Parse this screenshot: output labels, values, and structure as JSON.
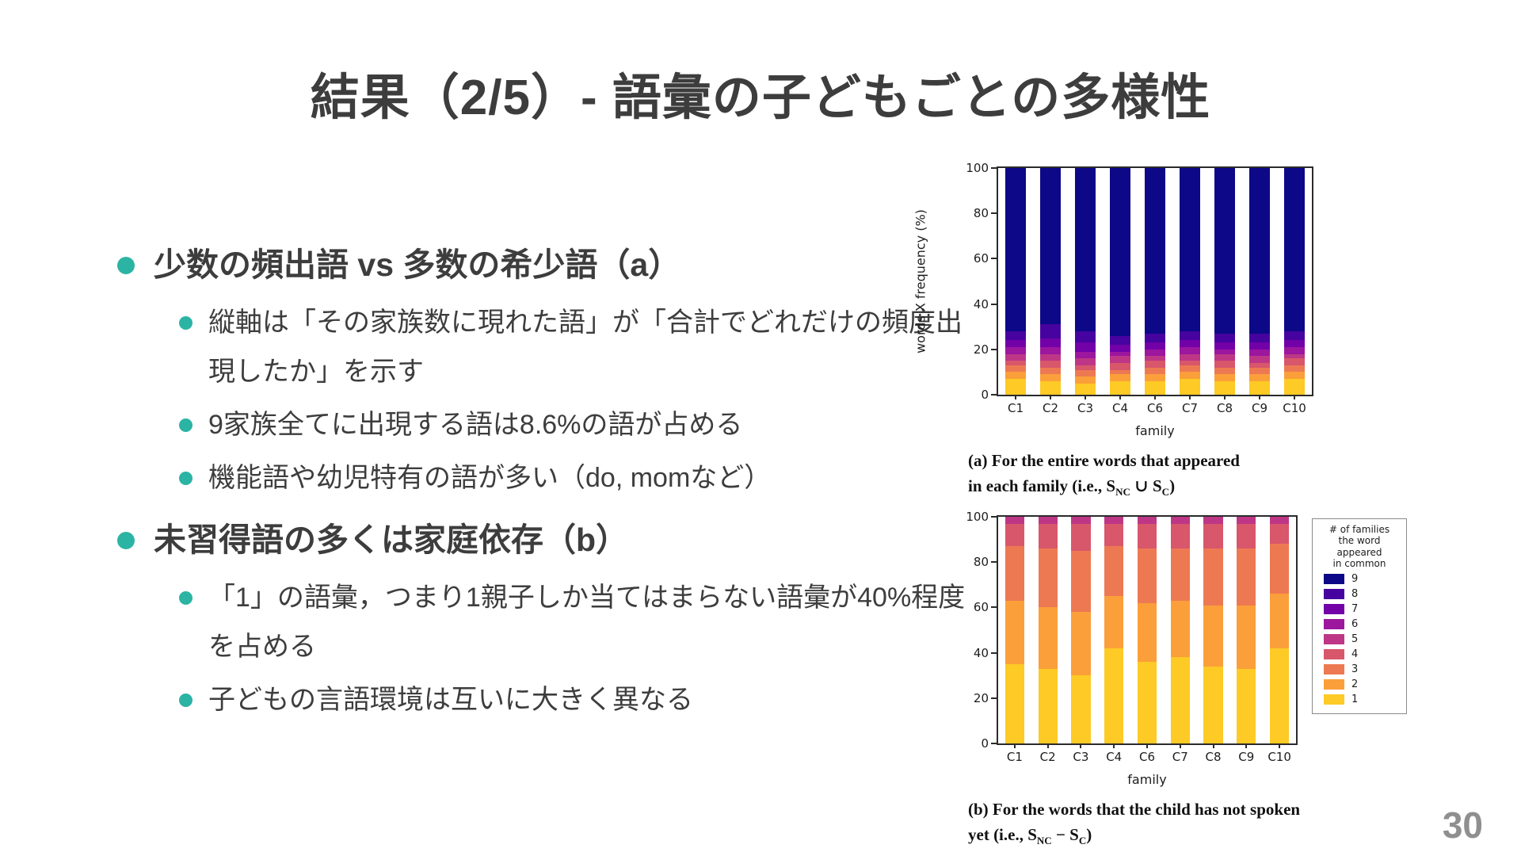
{
  "slide": {
    "title": "結果（2/5）- 語彙の子どもごとの多様性",
    "page_number": "30",
    "accent_color": "#2bb4a4",
    "text_color": "#3d3d3d"
  },
  "bullets": [
    {
      "level": 1,
      "text": "少数の頻出語 vs 多数の希少語（a）"
    },
    {
      "level": 2,
      "text": "縦軸は「その家族数に現れた語」が「合計でどれだけの頻度出現したか」を示す"
    },
    {
      "level": 2,
      "text": "9家族全てに出現する語は8.6%の語が占める"
    },
    {
      "level": 2,
      "text": "機能語や幼児特有の語が多い（do, momなど）"
    },
    {
      "level": 1,
      "text": "未習得語の多くは家庭依存（b）"
    },
    {
      "level": 2,
      "text": "「1」の語彙，つまり1親子しか当てはまらない語彙が40%程度を占める"
    },
    {
      "level": 2,
      "text": "子どもの言語環境は互いに大きく異なる"
    }
  ],
  "chart_data": [
    {
      "id": "a",
      "type": "bar",
      "stacked": true,
      "title": "",
      "ylabel": "words X frequency (%)",
      "xlabel": "family",
      "ylim": [
        0,
        100
      ],
      "yticks": [
        0,
        20,
        40,
        60,
        80,
        100
      ],
      "categories": [
        "C1",
        "C2",
        "C3",
        "C4",
        "C6",
        "C7",
        "C8",
        "C9",
        "C10"
      ],
      "series": [
        {
          "name": "1",
          "color": "#fdca26",
          "values": [
            7,
            6,
            5,
            6,
            6,
            7,
            6,
            6,
            7
          ]
        },
        {
          "name": "2",
          "color": "#fb9f3a",
          "values": [
            3,
            3,
            3,
            3,
            3,
            3,
            3,
            3,
            3
          ]
        },
        {
          "name": "3",
          "color": "#ed7953",
          "values": [
            3,
            3,
            3,
            2,
            3,
            3,
            3,
            3,
            3
          ]
        },
        {
          "name": "4",
          "color": "#d8576b",
          "values": [
            2,
            3,
            2,
            3,
            3,
            2,
            3,
            2,
            3
          ]
        },
        {
          "name": "5",
          "color": "#bd3786",
          "values": [
            3,
            3,
            3,
            3,
            2,
            3,
            3,
            3,
            2
          ]
        },
        {
          "name": "6",
          "color": "#9c179e",
          "values": [
            3,
            3,
            3,
            2,
            3,
            3,
            2,
            3,
            3
          ]
        },
        {
          "name": "7",
          "color": "#7201a8",
          "values": [
            3,
            4,
            4,
            3,
            3,
            3,
            3,
            3,
            3
          ]
        },
        {
          "name": "8",
          "color": "#46039f",
          "values": [
            4,
            6,
            5,
            4,
            4,
            4,
            4,
            4,
            4
          ]
        },
        {
          "name": "9",
          "color": "#0d0887",
          "values": [
            72,
            69,
            72,
            74,
            73,
            72,
            73,
            73,
            72
          ]
        }
      ]
    },
    {
      "id": "b",
      "type": "bar",
      "stacked": true,
      "title": "",
      "ylabel": "",
      "xlabel": "family",
      "ylim": [
        0,
        100
      ],
      "yticks": [
        0,
        20,
        40,
        60,
        80,
        100
      ],
      "categories": [
        "C1",
        "C2",
        "C3",
        "C4",
        "C6",
        "C7",
        "C8",
        "C9",
        "C10"
      ],
      "legend": {
        "title_lines": [
          "# of families",
          "the word",
          "appeared",
          "in common"
        ],
        "labels": [
          "9",
          "8",
          "7",
          "6",
          "5",
          "4",
          "3",
          "2",
          "1"
        ]
      },
      "series": [
        {
          "name": "1",
          "color": "#fdca26",
          "values": [
            35,
            33,
            30,
            42,
            36,
            38,
            34,
            33,
            42
          ]
        },
        {
          "name": "2",
          "color": "#fb9f3a",
          "values": [
            28,
            27,
            28,
            23,
            26,
            25,
            27,
            28,
            24
          ]
        },
        {
          "name": "3",
          "color": "#ed7953",
          "values": [
            24,
            26,
            27,
            22,
            24,
            23,
            25,
            25,
            22
          ]
        },
        {
          "name": "4",
          "color": "#d8576b",
          "values": [
            10,
            11,
            12,
            10,
            11,
            11,
            11,
            11,
            9
          ]
        },
        {
          "name": "5",
          "color": "#bd3786",
          "values": [
            3,
            3,
            3,
            3,
            3,
            3,
            3,
            3,
            3
          ]
        },
        {
          "name": "6",
          "color": "#9c179e",
          "values": [
            0,
            0,
            0,
            0,
            0,
            0,
            0,
            0,
            0
          ]
        },
        {
          "name": "7",
          "color": "#7201a8",
          "values": [
            0,
            0,
            0,
            0,
            0,
            0,
            0,
            0,
            0
          ]
        },
        {
          "name": "8",
          "color": "#46039f",
          "values": [
            0,
            0,
            0,
            0,
            0,
            0,
            0,
            0,
            0
          ]
        },
        {
          "name": "9",
          "color": "#0d0887",
          "values": [
            0,
            0,
            0,
            0,
            0,
            0,
            0,
            0,
            0
          ]
        }
      ]
    }
  ],
  "captions": {
    "a": {
      "line1": "(a) For the entire words that appeared",
      "line2_pre": "in each family (i.e., S",
      "sub1": "NC",
      "line2_mid": " ∪ S",
      "sub2": "C",
      "line2_end": ")"
    },
    "b": {
      "line1": "(b) For the words that the child has not spoken",
      "line2_pre": "yet (i.e., S",
      "sub1": "NC",
      "line2_mid": " − S",
      "sub2": "C",
      "line2_end": ")"
    }
  }
}
